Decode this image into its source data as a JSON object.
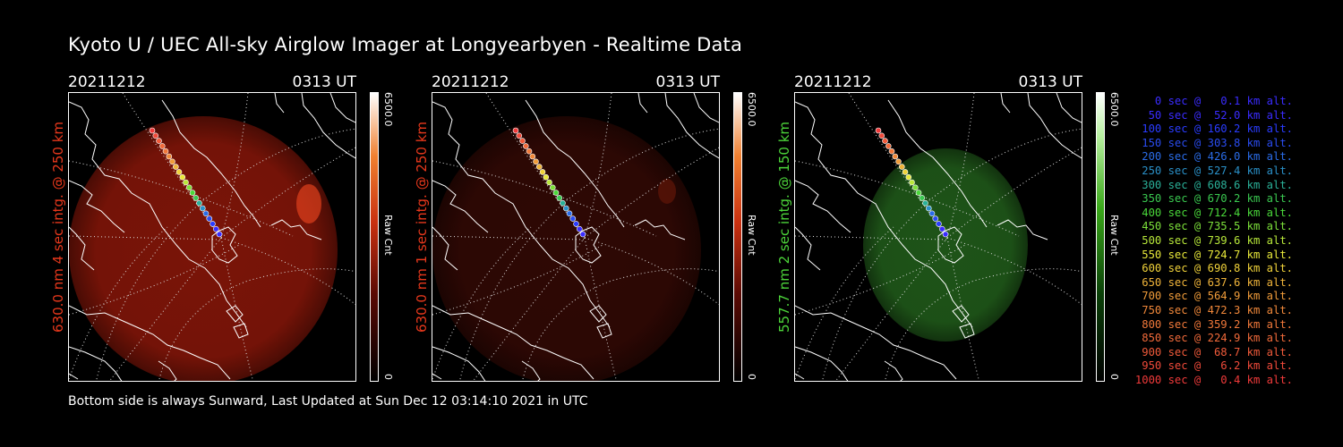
{
  "title": "Kyoto U / UEC All-sky Airglow Imager at Longyearbyen - Realtime Data",
  "panels": [
    {
      "date": "20211212",
      "time": "0313 UT",
      "ylabel": "630.0 nm 4 sec intg. @ 250 km",
      "ylabel_color": "#e8381c",
      "glow": "#7a1408",
      "cbar": "red",
      "cbar_max": "6500.0",
      "cbar_min": "0",
      "cbar_unit": "Raw Cnt"
    },
    {
      "date": "20211212",
      "time": "0313 UT",
      "ylabel": "630.0 nm 1 sec intg. @ 250 km",
      "ylabel_color": "#e8381c",
      "glow": "#2e0804",
      "cbar": "red",
      "cbar_max": "6500.0",
      "cbar_min": "0",
      "cbar_unit": "Raw Cnt"
    },
    {
      "date": "20211212",
      "time": "0313 UT",
      "ylabel": "557.7 nm 2 sec intg. @ 150 km",
      "ylabel_color": "#4cd43a",
      "glow": "#1e5418",
      "cbar": "green",
      "cbar_max": "6500.0",
      "cbar_min": "0",
      "cbar_unit": "Raw Cnt"
    }
  ],
  "footer": "Bottom side is always Sunward, Last Updated at Sun Dec 12 03:14:10 2021 in UTC",
  "legend": [
    {
      "text": "   0 sec @   0.1 km alt.",
      "color": "#3a2cff"
    },
    {
      "text": "  50 sec @  52.0 km alt.",
      "color": "#3a2cff"
    },
    {
      "text": " 100 sec @ 160.2 km alt.",
      "color": "#2a3cff"
    },
    {
      "text": " 150 sec @ 303.8 km alt.",
      "color": "#2a4cf0"
    },
    {
      "text": " 200 sec @ 426.0 km alt.",
      "color": "#2a6ce8"
    },
    {
      "text": " 250 sec @ 527.4 km alt.",
      "color": "#2a90c8"
    },
    {
      "text": " 300 sec @ 608.6 km alt.",
      "color": "#2ab098"
    },
    {
      "text": " 350 sec @ 670.2 km alt.",
      "color": "#3ac850"
    },
    {
      "text": " 400 sec @ 712.4 km alt.",
      "color": "#4ad83a"
    },
    {
      "text": " 450 sec @ 735.5 km alt.",
      "color": "#7ce03a"
    },
    {
      "text": " 500 sec @ 739.6 km alt.",
      "color": "#b8e83a"
    },
    {
      "text": " 550 sec @ 724.7 km alt.",
      "color": "#e8e83a"
    },
    {
      "text": " 600 sec @ 690.8 km alt.",
      "color": "#f0d23a"
    },
    {
      "text": " 650 sec @ 637.6 km alt.",
      "color": "#f0b43a"
    },
    {
      "text": " 700 sec @ 564.9 km alt.",
      "color": "#f09c3a"
    },
    {
      "text": " 750 sec @ 472.3 km alt.",
      "color": "#f0883a"
    },
    {
      "text": " 800 sec @ 359.2 km alt.",
      "color": "#f0783a"
    },
    {
      "text": " 850 sec @ 224.9 km alt.",
      "color": "#f06a3a"
    },
    {
      "text": " 900 sec @  68.7 km alt.",
      "color": "#f05a3a"
    },
    {
      "text": " 950 sec @   6.2 km alt.",
      "color": "#f04a3a"
    },
    {
      "text": "1000 sec @   0.4 km alt.",
      "color": "#f03a3a"
    }
  ]
}
